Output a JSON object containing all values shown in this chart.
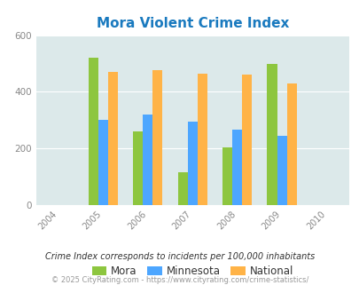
{
  "title": "Mora Violent Crime Index",
  "years": [
    2004,
    2005,
    2006,
    2007,
    2008,
    2009,
    2010
  ],
  "data_years": [
    2005,
    2006,
    2007,
    2008,
    2009
  ],
  "mora": [
    520,
    260,
    115,
    205,
    498
  ],
  "minnesota": [
    300,
    320,
    295,
    265,
    245
  ],
  "national": [
    470,
    475,
    465,
    460,
    430
  ],
  "bar_colors": {
    "mora": "#8dc63f",
    "minnesota": "#4da6ff",
    "national": "#ffb347"
  },
  "ylim": [
    0,
    600
  ],
  "yticks": [
    0,
    200,
    400,
    600
  ],
  "background_color": "#dce9ea",
  "title_color": "#1a7abf",
  "title_fontsize": 11,
  "legend_labels": [
    "Mora",
    "Minnesota",
    "National"
  ],
  "footnote1": "Crime Index corresponds to incidents per 100,000 inhabitants",
  "footnote2": "© 2025 CityRating.com - https://www.cityrating.com/crime-statistics/",
  "bar_width": 0.22
}
